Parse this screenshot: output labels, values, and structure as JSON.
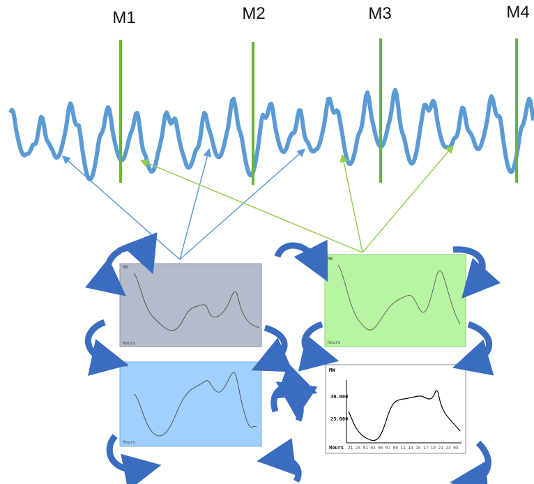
{
  "markers": [
    "M1",
    "M2",
    "M3",
    "M4"
  ],
  "panels": [
    {
      "y_label": "MW",
      "x_label": "Hours"
    },
    {
      "y_label": "MW",
      "x_label": "Hours"
    },
    {
      "y_label": "MW",
      "x_label": "Hours"
    },
    {
      "y_label": "MW",
      "x_label": "Hours",
      "y_ticks": [
        "30.000",
        "25.000"
      ],
      "x_ticks": [
        "21",
        "23",
        "01",
        "03",
        "05",
        "07",
        "09",
        "11",
        "13",
        "15",
        "17",
        "19",
        "21",
        "23",
        "03"
      ]
    }
  ]
}
